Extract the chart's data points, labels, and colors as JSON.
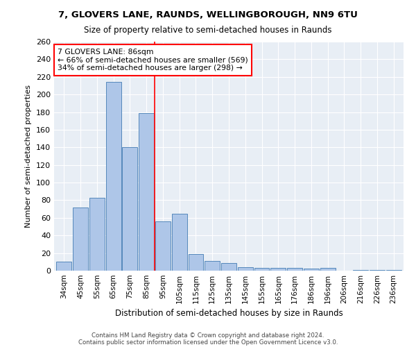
{
  "title": "7, GLOVERS LANE, RAUNDS, WELLINGBOROUGH, NN9 6TU",
  "subtitle": "Size of property relative to semi-detached houses in Raunds",
  "xlabel": "Distribution of semi-detached houses by size in Raunds",
  "ylabel": "Number of semi-detached properties",
  "footer1": "Contains HM Land Registry data © Crown copyright and database right 2024.",
  "footer2": "Contains public sector information licensed under the Open Government Licence v3.0.",
  "categories": [
    "34sqm",
    "45sqm",
    "55sqm",
    "65sqm",
    "75sqm",
    "85sqm",
    "95sqm",
    "105sqm",
    "115sqm",
    "125sqm",
    "135sqm",
    "145sqm",
    "155sqm",
    "165sqm",
    "176sqm",
    "186sqm",
    "196sqm",
    "206sqm",
    "216sqm",
    "226sqm",
    "236sqm"
  ],
  "values": [
    10,
    72,
    83,
    214,
    140,
    179,
    56,
    65,
    19,
    11,
    9,
    4,
    3,
    3,
    3,
    2,
    3,
    0,
    1,
    1,
    1
  ],
  "bar_color": "#aec6e8",
  "bar_edge_color": "#5588bb",
  "background_color": "#e8eef5",
  "grid_color": "#ffffff",
  "property_label": "7 GLOVERS LANE: 86sqm",
  "pct_smaller": 66,
  "count_smaller": 569,
  "pct_larger": 34,
  "count_larger": 298,
  "vline_bin_index": 5,
  "ylim": [
    0,
    260
  ],
  "yticks": [
    0,
    20,
    40,
    60,
    80,
    100,
    120,
    140,
    160,
    180,
    200,
    220,
    240,
    260
  ]
}
